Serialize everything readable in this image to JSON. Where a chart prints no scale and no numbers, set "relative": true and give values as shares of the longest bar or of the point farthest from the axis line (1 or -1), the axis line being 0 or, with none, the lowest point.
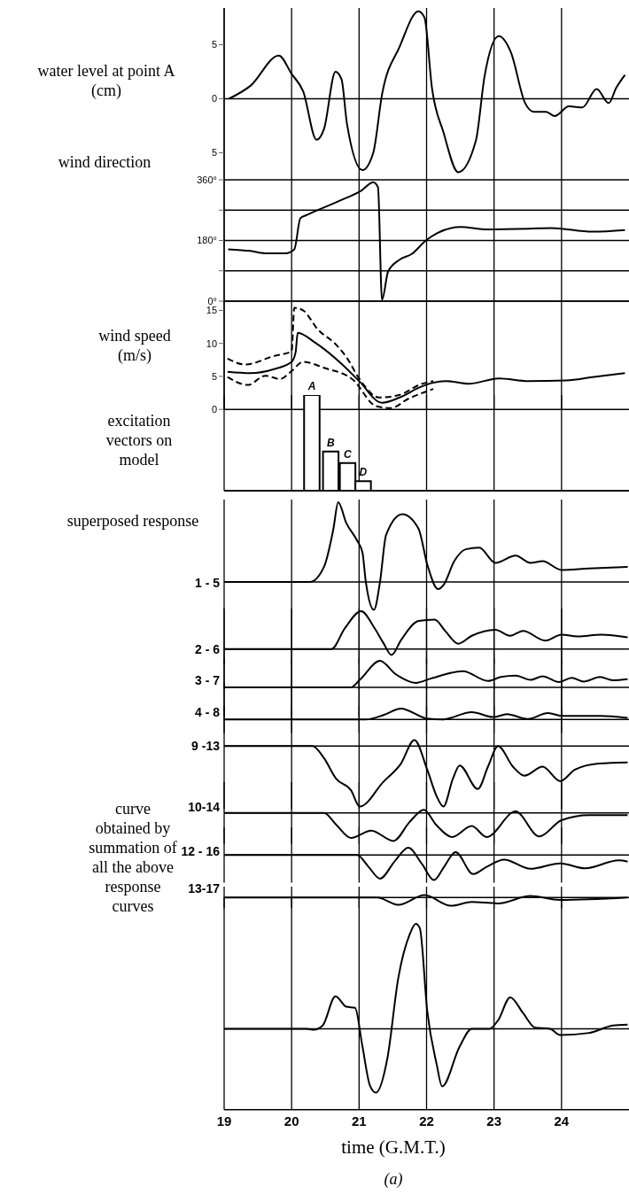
{
  "chart_data": [
    {
      "type": "line",
      "ylabel": "water level at point A (cm)",
      "xlim": [
        19,
        25
      ],
      "xticks": [
        19,
        20,
        21,
        22,
        23,
        24
      ],
      "ylim": [
        -7.5,
        8.4
      ],
      "yticks": [
        {
          "value": -5,
          "label": "5"
        },
        0,
        5
      ],
      "tick_labels": "y",
      "grid": "x",
      "ref_lines": [
        {
          "axis": "y",
          "value": 0
        }
      ],
      "x": [
        19.07,
        19.39,
        19.81,
        20.0,
        20.17,
        20.37,
        20.48,
        20.65,
        20.74,
        20.82,
        21.05,
        21.21,
        21.34,
        21.6,
        21.88,
        21.97,
        22.08,
        22.25,
        22.47,
        22.73,
        22.86,
        23.07,
        23.25,
        23.46,
        23.59,
        23.77,
        23.9,
        24.11,
        24.31,
        24.52,
        24.7,
        24.81,
        24.94
      ],
      "series": [
        {
          "color": "#000000",
          "values": [
            0,
            1.2,
            4.0,
            2.3,
            0.7,
            -3.8,
            -2.8,
            2.5,
            1.8,
            -2.3,
            -6.6,
            -5.0,
            0.4,
            4.8,
            8.1,
            7.5,
            1.0,
            -3.1,
            -6.8,
            -3.9,
            2.1,
            5.8,
            4.3,
            -0.4,
            -1.2,
            -1.2,
            -1.6,
            -0.7,
            -0.8,
            0.9,
            -0.4,
            1.0,
            2.2
          ]
        }
      ]
    },
    {
      "type": "line",
      "ylabel": "wind direction",
      "xlim": [
        19,
        25
      ],
      "xticks": [
        19,
        20,
        21,
        22,
        23,
        24
      ],
      "ylim": [
        0,
        360
      ],
      "yticks": [
        {
          "value": 0,
          "label": "0°"
        },
        {
          "value": 90,
          "label": null
        },
        {
          "value": 180,
          "label": "180°"
        },
        {
          "value": 270,
          "label": null
        },
        {
          "value": 360,
          "label": "360°"
        }
      ],
      "tick_labels": "y",
      "grid": true,
      "x": [
        19.06,
        19.39,
        19.61,
        19.91,
        20.04,
        20.13,
        20.22,
        20.69,
        21.04,
        21.21,
        21.28,
        21.34,
        21.43,
        21.6,
        21.78,
        21.99,
        22.16,
        22.51,
        22.86,
        23.51,
        23.85,
        24.46,
        24.94
      ],
      "series": [
        {
          "color": "#000000",
          "values": [
            154,
            149,
            142,
            142,
            154,
            246,
            255,
            296,
            329,
            353,
            338,
            4,
            88,
            123,
            140,
            180,
            202,
            220,
            213,
            215,
            217,
            206,
            211
          ]
        }
      ]
    },
    {
      "type": "line",
      "ylabel": "wind speed (m/s)",
      "xlim": [
        19,
        25
      ],
      "xticks": [
        19,
        20,
        21,
        22,
        23,
        24
      ],
      "ylim": [
        0,
        16.4
      ],
      "yticks": [
        0,
        5,
        10,
        15
      ],
      "tick_labels": "y",
      "grid": "x",
      "x": [
        19.05,
        19.39,
        19.74,
        20.0,
        20.06,
        20.09,
        20.35,
        20.74,
        21.0,
        21.34,
        21.6,
        21.91,
        22.08,
        22.29,
        22.64,
        23.07,
        23.51,
        24.07,
        24.46,
        24.94
      ],
      "series": [
        {
          "color": "#000000",
          "line_style": "solid",
          "values": [
            5.7,
            5.5,
            6.1,
            7.2,
            8.7,
            11.6,
            10.1,
            6.9,
            4.3,
            1.0,
            1.8,
            3.4,
            4.0,
            4.3,
            3.9,
            4.7,
            4.3,
            4.4,
            4.9,
            5.5
          ]
        },
        {
          "color": "#000000",
          "line_style": "dashed",
          "x": [
            19.05,
            19.31,
            19.74,
            20.0,
            20.04,
            20.17,
            20.39,
            20.65,
            20.82,
            21.0,
            21.3,
            21.6,
            21.91,
            22.1
          ],
          "values": [
            7.7,
            6.8,
            8.1,
            8.8,
            15.4,
            15.0,
            12.1,
            9.9,
            7.8,
            4.7,
            1.8,
            2.2,
            3.8,
            4.3
          ]
        },
        {
          "color": "#000000",
          "line_style": "dashed",
          "x": [
            19.05,
            19.35,
            19.61,
            19.83,
            20.0,
            20.17,
            20.48,
            20.91,
            21.25,
            21.47,
            21.73,
            22.1
          ],
          "values": [
            4.9,
            3.7,
            5.1,
            4.6,
            5.8,
            7.2,
            6.3,
            4.5,
            0.5,
            0.2,
            1.6,
            3.1
          ]
        }
      ]
    },
    {
      "type": "bar",
      "ylabel": "excitation vectors on model",
      "relative": true,
      "xlim": [
        19,
        25
      ],
      "xticks": [
        19,
        20,
        21,
        22,
        23,
        24
      ],
      "tick_labels": false,
      "grid": "x",
      "color": "#000000",
      "x": [
        20.3,
        20.58,
        20.83,
        21.06
      ],
      "values": [
        1,
        0.41,
        0.29,
        0.1
      ],
      "annotations": [
        {
          "text": "A",
          "x": 20.3,
          "y": 1
        },
        {
          "text": "B",
          "x": 20.58,
          "y": 0.41
        },
        {
          "text": "C",
          "x": 20.83,
          "y": 0.29
        },
        {
          "text": "D",
          "x": 21.06,
          "y": 0.1
        }
      ]
    },
    {
      "type": "line",
      "ylabel": "1 - 5",
      "annotations": [
        "superposed response"
      ],
      "relative": true,
      "xlim": [
        19,
        25
      ],
      "xticks": [
        19,
        20,
        21,
        22,
        23,
        24
      ],
      "tick_labels": false,
      "grid": "x",
      "x": [
        19,
        20.27,
        20.48,
        20.62,
        20.69,
        20.81,
        20.97,
        21.05,
        21.1,
        21.22,
        21.31,
        21.4,
        21.64,
        21.88,
        22.01,
        22.17,
        22.25,
        22.41,
        22.58,
        22.78,
        23.02,
        23.32,
        23.54,
        23.72,
        24.0,
        24.41,
        24.98
      ],
      "series": [
        {
          "color": "#000000",
          "values": [
            0,
            0,
            0.19,
            0.67,
            1,
            0.74,
            0.52,
            0.37,
            0,
            -0.35,
            0,
            0.59,
            0.85,
            0.67,
            0.22,
            -0.09,
            -0.04,
            0.26,
            0.41,
            0.43,
            0.24,
            0.33,
            0.24,
            0.26,
            0.15,
            0.17,
            0.19
          ]
        }
      ]
    },
    {
      "type": "line",
      "ylabel": "2 - 6",
      "relative": true,
      "xlim": [
        19,
        25
      ],
      "xticks": [
        19,
        20,
        21,
        22,
        23,
        24
      ],
      "tick_labels": false,
      "grid": "x",
      "x": [
        19,
        20.59,
        20.79,
        21.03,
        21.23,
        21.36,
        21.48,
        21.62,
        21.88,
        22.12,
        22.28,
        22.47,
        22.67,
        23.02,
        23.24,
        23.43,
        23.76,
        24.0,
        24.24,
        24.59,
        24.98
      ],
      "series": [
        {
          "color": "#000000",
          "values": [
            0,
            0,
            0.55,
            1,
            0.55,
            0.16,
            -0.16,
            0.23,
            0.74,
            0.78,
            0.47,
            0.14,
            0.35,
            0.51,
            0.35,
            0.48,
            0.22,
            0.38,
            0.33,
            0.38,
            0.31
          ]
        }
      ]
    },
    {
      "type": "line",
      "ylabel": "3 - 7",
      "relative": true,
      "xlim": [
        19,
        25
      ],
      "xticks": [
        19,
        20,
        21,
        22,
        23,
        24
      ],
      "tick_labels": false,
      "grid": "x",
      "x": [
        19,
        20.88,
        21.01,
        21.31,
        21.54,
        21.84,
        22.06,
        22.54,
        22.91,
        23.1,
        23.32,
        23.54,
        23.72,
        23.96,
        24.15,
        24.33,
        24.57,
        24.76,
        24.98
      ],
      "series": [
        {
          "color": "#000000",
          "values": [
            0,
            0,
            0.28,
            1,
            0.5,
            0.17,
            0.33,
            0.61,
            0.24,
            0.39,
            0.44,
            0.28,
            0.42,
            0.2,
            0.36,
            0.22,
            0.39,
            0.27,
            0.31
          ]
        }
      ]
    },
    {
      "type": "line",
      "ylabel": "4 - 8",
      "relative": true,
      "xlim": [
        19,
        25
      ],
      "xticks": [
        19,
        20,
        21,
        22,
        23,
        24
      ],
      "tick_labels": false,
      "grid": "x",
      "x": [
        19,
        21.1,
        21.36,
        21.62,
        22.01,
        22.23,
        22.67,
        22.99,
        23.19,
        23.5,
        23.8,
        24.02,
        24.59,
        24.98
      ],
      "series": [
        {
          "color": "#000000",
          "values": [
            0,
            0,
            0.41,
            1,
            0.08,
            0,
            0.68,
            0.22,
            0.49,
            0.05,
            0.59,
            0.32,
            0.32,
            0.14
          ]
        }
      ]
    },
    {
      "type": "line",
      "ylabel": "9 -13",
      "relative": true,
      "xlim": [
        19,
        25
      ],
      "xticks": [
        19,
        20,
        21,
        22,
        23,
        24
      ],
      "tick_labels": false,
      "grid": "x",
      "x": [
        19,
        20.31,
        20.48,
        20.66,
        20.88,
        21.01,
        21.36,
        21.62,
        21.82,
        22.01,
        22.15,
        22.25,
        22.39,
        22.49,
        22.76,
        22.91,
        23.06,
        23.28,
        23.45,
        23.72,
        23.98,
        24.2,
        24.55,
        24.98
      ],
      "series": [
        {
          "color": "#000000",
          "values": [
            0,
            0,
            -0.2,
            -0.54,
            -0.73,
            -1,
            -0.59,
            -0.29,
            0.1,
            -0.39,
            -0.83,
            -1,
            -0.54,
            -0.32,
            -0.71,
            -0.34,
            0,
            -0.34,
            -0.49,
            -0.34,
            -0.58,
            -0.39,
            -0.29,
            -0.27
          ]
        }
      ]
    },
    {
      "type": "line",
      "ylabel": "10-14",
      "relative": true,
      "xlim": [
        19,
        25
      ],
      "xticks": [
        19,
        20,
        21,
        22,
        23,
        24
      ],
      "tick_labels": false,
      "grid": "x",
      "x": [
        19,
        20.48,
        20.66,
        20.88,
        21.18,
        21.51,
        21.75,
        21.96,
        22.14,
        22.38,
        22.67,
        22.89,
        23.32,
        23.67,
        24.0,
        24.41,
        24.98
      ],
      "series": [
        {
          "color": "#000000",
          "values": [
            0,
            0,
            -0.42,
            -0.89,
            -0.63,
            -1,
            -0.32,
            0.11,
            -0.42,
            -0.86,
            -0.47,
            -0.86,
            0.05,
            -0.84,
            -0.26,
            -0.08,
            -0.08
          ]
        }
      ]
    },
    {
      "type": "line",
      "ylabel": "12 - 16",
      "relative": true,
      "xlim": [
        19,
        25
      ],
      "xticks": [
        19,
        20,
        21,
        22,
        23,
        24
      ],
      "tick_labels": false,
      "grid": "x",
      "x": [
        19,
        20.97,
        21.14,
        21.31,
        21.53,
        21.73,
        21.93,
        22.11,
        22.26,
        22.43,
        22.69,
        22.89,
        23.15,
        23.54,
        23.98,
        24.35,
        24.85,
        24.98
      ],
      "series": [
        {
          "color": "#000000",
          "values": [
            0,
            0,
            -0.47,
            -0.94,
            -0.24,
            0.29,
            -0.35,
            -1,
            -0.47,
            0.12,
            -0.76,
            -0.47,
            -0.18,
            -0.55,
            -0.33,
            -0.53,
            -0.21,
            -0.26
          ]
        }
      ]
    },
    {
      "type": "line",
      "ylabel": "13-17",
      "relative": true,
      "xlim": [
        19,
        25
      ],
      "xticks": [
        19,
        20,
        21,
        22,
        23,
        24
      ],
      "tick_labels": false,
      "grid": "x",
      "x": [
        19,
        21.27,
        21.58,
        21.97,
        22.36,
        22.67,
        23.06,
        23.54,
        23.98,
        24.98
      ],
      "series": [
        {
          "color": "#000000",
          "values": [
            0,
            0,
            -0.89,
            0.29,
            -1,
            -0.54,
            -0.71,
            0.18,
            -0.29,
            0
          ]
        }
      ]
    },
    {
      "type": "line",
      "ylabel": "curve obtained by summation of all the above response curves",
      "xlabel": "time (G.M.T.)",
      "annotations": [
        "(a)"
      ],
      "relative": true,
      "xlim": [
        19,
        25
      ],
      "xticks": [
        19,
        20,
        21,
        22,
        23,
        24
      ],
      "tick_labels": "x",
      "grid": "x",
      "x": [
        19,
        20.22,
        20.33,
        20.46,
        20.65,
        20.81,
        20.94,
        21.05,
        21.16,
        21.25,
        21.42,
        21.58,
        21.75,
        21.84,
        21.9,
        22.01,
        22.15,
        22.23,
        22.49,
        22.67,
        22.93,
        23.06,
        23.24,
        23.43,
        23.61,
        23.83,
        23.98,
        24.41,
        24.76,
        24.98
      ],
      "series": [
        {
          "color": "#000000",
          "values": [
            0,
            0,
            -0.01,
            0.03,
            0.31,
            0.21,
            0.2,
            -0.17,
            -0.54,
            -0.61,
            -0.28,
            0.48,
            0.9,
            1,
            0.96,
            0.17,
            -0.34,
            -0.55,
            -0.17,
            0,
            0,
            0.08,
            0.3,
            0.15,
            0.01,
            0,
            -0.06,
            -0.04,
            0.03,
            0.04
          ]
        }
      ]
    }
  ]
}
